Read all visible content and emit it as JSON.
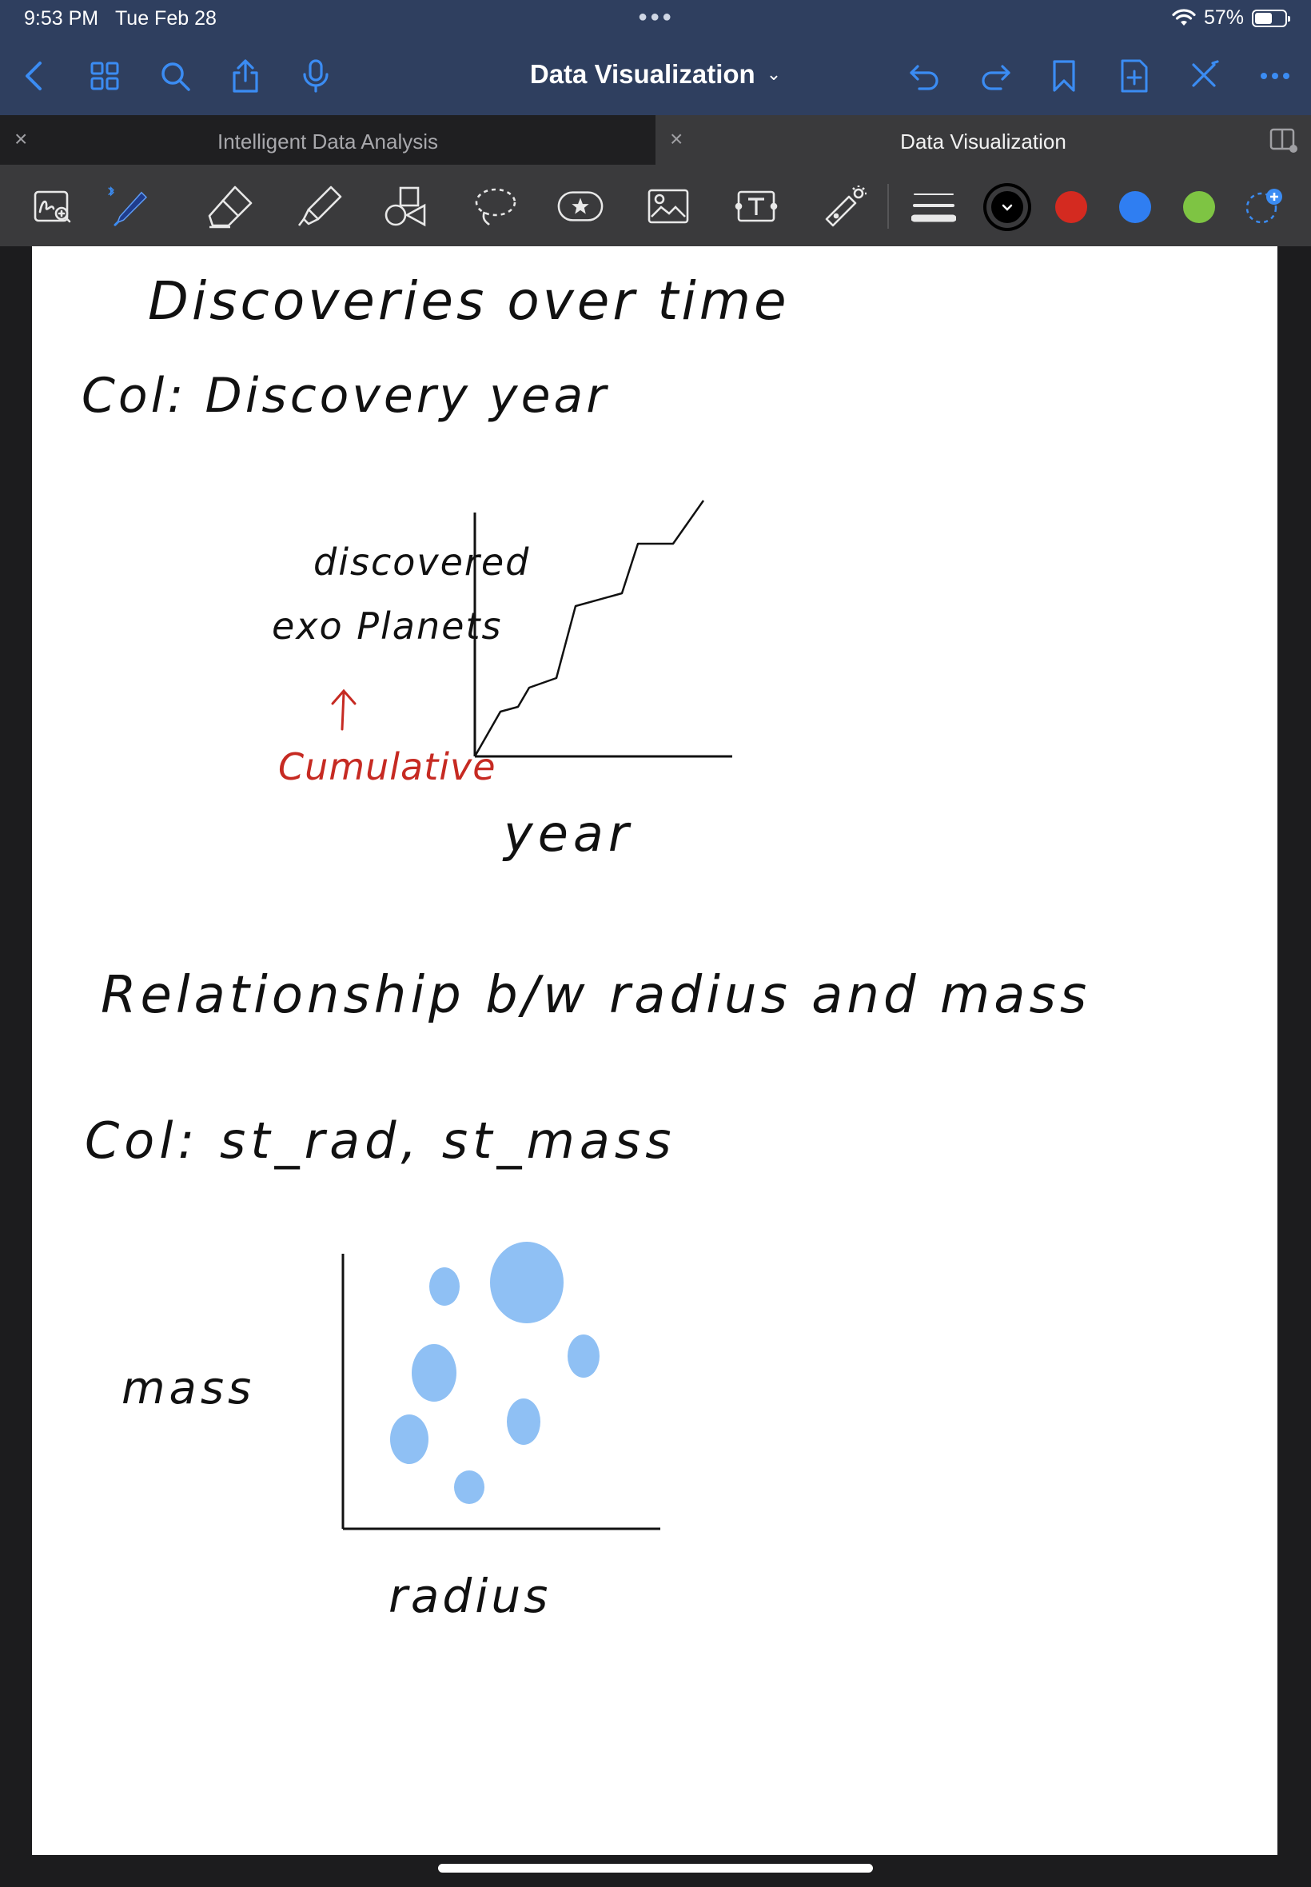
{
  "status": {
    "time": "9:53 PM",
    "date": "Tue Feb 28",
    "battery": "57%",
    "battery_level": 0.57
  },
  "nav": {
    "title": "Data Visualization"
  },
  "tabs": [
    {
      "label": "Intelligent Data Analysis",
      "active": false
    },
    {
      "label": "Data Visualization",
      "active": true
    }
  ],
  "toolbar": {
    "tools": [
      "lasso-zoom-icon",
      "bluetooth-pen-icon",
      "eraser-icon",
      "highlighter-icon",
      "shapes-icon",
      "lasso-icon",
      "sticker-icon",
      "image-icon",
      "text-icon",
      "laser-pointer-icon",
      "stroke-width-icon"
    ],
    "colors": [
      "#000000",
      "#d42a20",
      "#2f7ef2",
      "#7ec443"
    ]
  },
  "notes": {
    "heading1": "Discoveries over time",
    "col1": "Col: Discovery year",
    "chart1": {
      "ylabel_line1": "discovered",
      "ylabel_line2": "exo Planets",
      "annotation": "Cumulative",
      "xlabel": "year"
    },
    "heading2": "Relationship b/w radius and mass",
    "col2": "Col: st_rad, st_mass",
    "chart2": {
      "ylabel": "mass",
      "xlabel": "radius"
    }
  }
}
